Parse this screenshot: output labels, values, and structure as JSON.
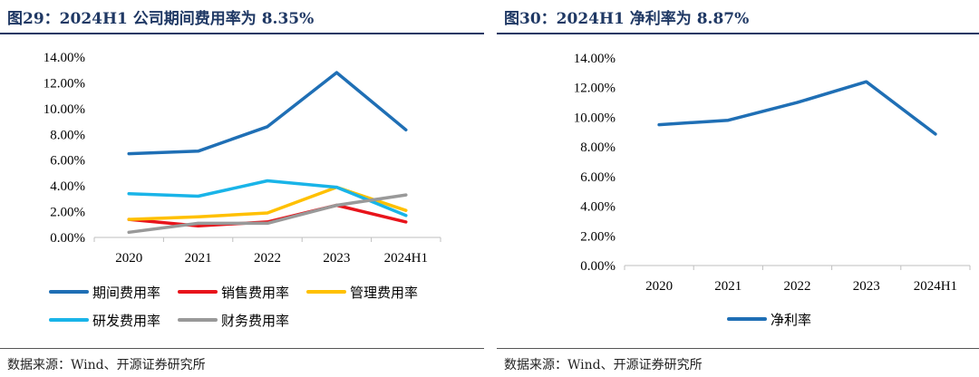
{
  "left": {
    "title": "图29：2024H1 公司期间费用率为 8.35%",
    "source": "数据来源：Wind、开源证券研究所"
  },
  "right": {
    "title": "图30：2024H1 净利率为 8.87%",
    "source": "数据来源：Wind、开源证券研究所"
  },
  "chart_data": [
    {
      "type": "line",
      "title": "图29：2024H1 公司期间费用率为 8.35%",
      "categories": [
        "2020",
        "2021",
        "2022",
        "2023",
        "2024H1"
      ],
      "ylim": [
        0,
        14
      ],
      "yticks": [
        "0.00%",
        "2.00%",
        "4.00%",
        "6.00%",
        "8.00%",
        "10.00%",
        "12.00%",
        "14.00%"
      ],
      "grid": false,
      "legend": "bottom",
      "series": [
        {
          "name": "期间费用率",
          "color": "#1f6fb5",
          "values": [
            6.5,
            6.7,
            8.6,
            12.8,
            8.35
          ]
        },
        {
          "name": "销售费用率",
          "color": "#e8141b",
          "values": [
            1.4,
            0.9,
            1.2,
            2.5,
            1.2
          ]
        },
        {
          "name": "管理费用率",
          "color": "#ffc000",
          "values": [
            1.4,
            1.6,
            1.9,
            3.9,
            2.1
          ]
        },
        {
          "name": "研发费用率",
          "color": "#19b4e8",
          "values": [
            3.4,
            3.2,
            4.4,
            3.9,
            1.7
          ]
        },
        {
          "name": "财务费用率",
          "color": "#999999",
          "values": [
            0.4,
            1.1,
            1.1,
            2.5,
            3.3
          ]
        }
      ]
    },
    {
      "type": "line",
      "title": "图30：2024H1 净利率为 8.87%",
      "categories": [
        "2020",
        "2021",
        "2022",
        "2023",
        "2024H1"
      ],
      "ylim": [
        0,
        14
      ],
      "yticks": [
        "0.00%",
        "2.00%",
        "4.00%",
        "6.00%",
        "8.00%",
        "10.00%",
        "12.00%",
        "14.00%"
      ],
      "grid": false,
      "legend": "bottom",
      "series": [
        {
          "name": "净利率",
          "color": "#1f6fb5",
          "values": [
            9.5,
            9.8,
            11.0,
            12.4,
            8.87
          ]
        }
      ]
    }
  ]
}
